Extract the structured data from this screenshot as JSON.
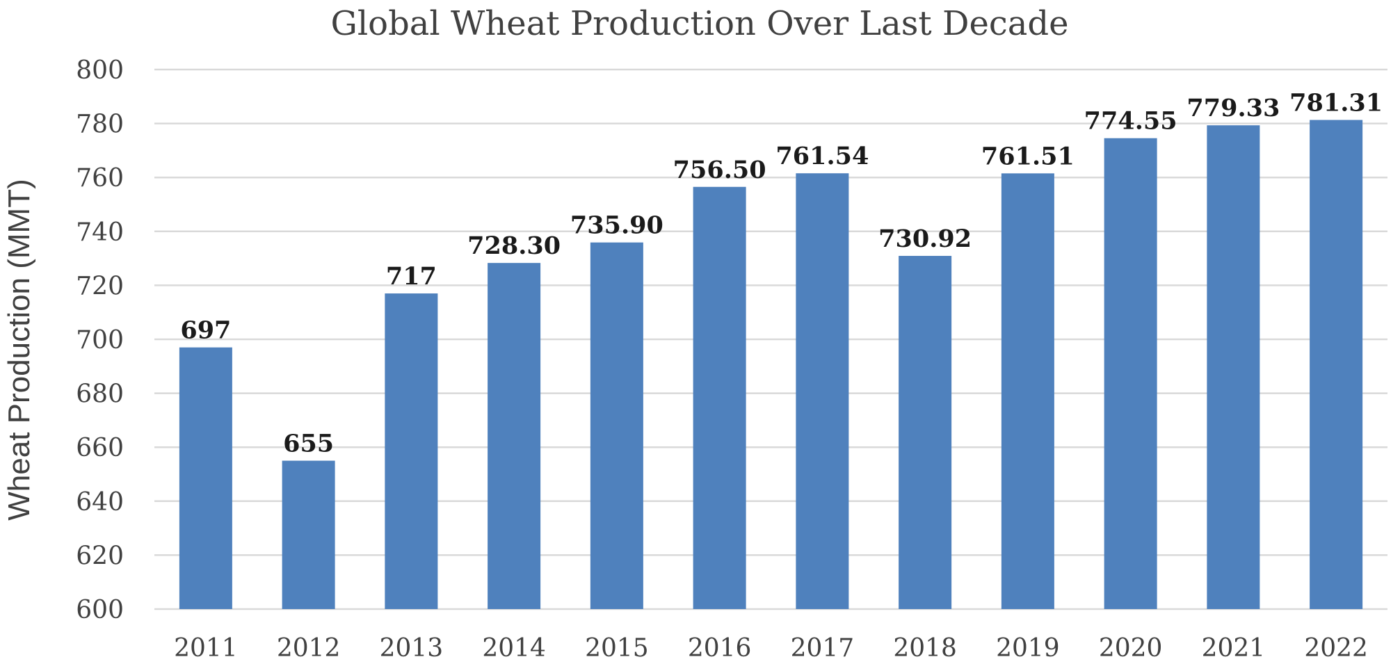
{
  "chart_data": {
    "type": "bar",
    "title": "Global Wheat Production Over Last Decade",
    "xlabel": "",
    "ylabel": "Wheat Production (MMT)",
    "categories": [
      "2011",
      "2012",
      "2013",
      "2014",
      "2015",
      "2016",
      "2017",
      "2018",
      "2019",
      "2020",
      "2021",
      "2022"
    ],
    "values": [
      697,
      655,
      717,
      728.3,
      735.9,
      756.5,
      761.54,
      730.92,
      761.51,
      774.55,
      779.33,
      781.31
    ],
    "value_labels": [
      "697",
      "655",
      "717",
      "728.30",
      "735.90",
      "756.50",
      "761.54",
      "730.92",
      "761.51",
      "774.55",
      "779.33",
      "781.31"
    ],
    "ylim": [
      600,
      800
    ],
    "yticks": [
      "600",
      "620",
      "640",
      "660",
      "680",
      "700",
      "720",
      "740",
      "760",
      "780",
      "800"
    ],
    "grid": true,
    "legend": "none",
    "colors": {
      "bar": "#4f81bd",
      "grid": "#d9d9d9",
      "text": "#404040"
    }
  }
}
